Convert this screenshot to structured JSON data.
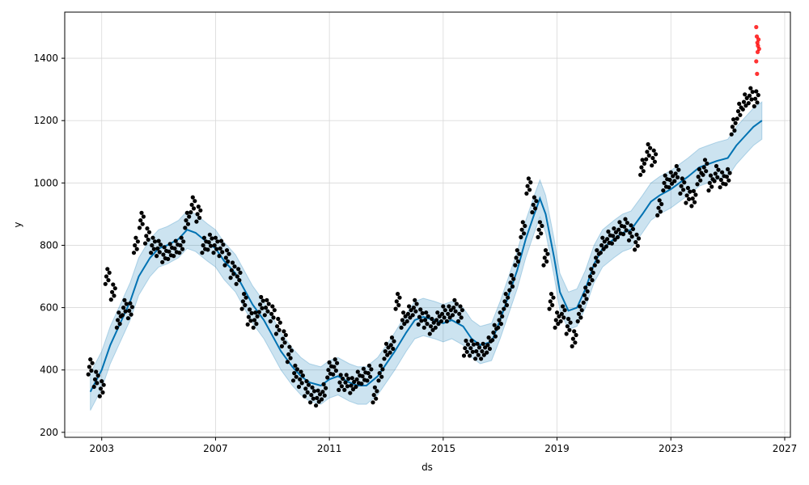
{
  "chart_data": {
    "type": "scatter",
    "title": "",
    "xlabel": "ds",
    "ylabel": "y",
    "xlim": [
      2001.7,
      2027.2
    ],
    "ylim": [
      184,
      1548
    ],
    "grid": true,
    "legend": "none",
    "x_ticks": [
      2003,
      2007,
      2011,
      2015,
      2019,
      2023,
      2027
    ],
    "y_ticks": [
      200,
      400,
      600,
      800,
      1000,
      1200,
      1400
    ],
    "colors": {
      "observed": "#000000",
      "forecast_line": "#0072B2",
      "uncertainty_band": "#0072B2",
      "outliers": "#FF0000",
      "grid": "#d9d9d9"
    },
    "series": [
      {
        "kind": "forecast",
        "x": [
          2002.6,
          2003.0,
          2003.3,
          2003.7,
          2004.0,
          2004.3,
          2004.7,
          2005.0,
          2005.3,
          2005.7,
          2006.0,
          2006.3,
          2006.7,
          2007.0,
          2007.3,
          2007.7,
          2008.0,
          2008.3,
          2008.7,
          2009.0,
          2009.3,
          2009.7,
          2010.0,
          2010.3,
          2010.7,
          2011.0,
          2011.3,
          2011.7,
          2012.0,
          2012.3,
          2012.7,
          2013.0,
          2013.3,
          2013.7,
          2014.0,
          2014.3,
          2014.7,
          2015.0,
          2015.3,
          2015.7,
          2016.0,
          2016.3,
          2016.7,
          2017.0,
          2017.3,
          2017.6,
          2017.9,
          2018.2,
          2018.4,
          2018.6,
          2018.9,
          2019.1,
          2019.4,
          2019.7,
          2020.0,
          2020.3,
          2020.6,
          2021.0,
          2021.3,
          2021.6,
          2022.0,
          2022.3,
          2022.6,
          2023.0,
          2023.3,
          2023.6,
          2024.0,
          2024.3,
          2024.6,
          2025.0,
          2025.3,
          2025.6,
          2025.9,
          2026.2
        ],
        "y": [
          330,
          400,
          480,
          560,
          620,
          700,
          760,
          790,
          800,
          820,
          850,
          840,
          810,
          790,
          750,
          710,
          660,
          610,
          560,
          510,
          460,
          410,
          380,
          360,
          350,
          370,
          380,
          360,
          350,
          350,
          380,
          420,
          460,
          520,
          560,
          570,
          560,
          550,
          560,
          540,
          500,
          480,
          490,
          560,
          640,
          720,
          820,
          900,
          950,
          900,
          760,
          650,
          590,
          600,
          660,
          740,
          790,
          820,
          840,
          850,
          900,
          940,
          960,
          980,
          1000,
          1020,
          1050,
          1060,
          1070,
          1080,
          1120,
          1150,
          1180,
          1200
        ]
      },
      {
        "kind": "observed",
        "x": [
          2002.6,
          2002.8,
          2003.0,
          2003.2,
          2003.4,
          2003.6,
          2003.8,
          2004.0,
          2004.2,
          2004.4,
          2004.6,
          2004.8,
          2005.0,
          2005.2,
          2005.4,
          2005.6,
          2005.8,
          2006.0,
          2006.2,
          2006.4,
          2006.6,
          2006.8,
          2007.0,
          2007.2,
          2007.4,
          2007.6,
          2007.8,
          2008.0,
          2008.2,
          2008.4,
          2008.6,
          2008.8,
          2009.0,
          2009.2,
          2009.4,
          2009.6,
          2009.8,
          2010.0,
          2010.2,
          2010.4,
          2010.6,
          2010.8,
          2011.0,
          2011.2,
          2011.4,
          2011.6,
          2011.8,
          2012.0,
          2012.2,
          2012.4,
          2012.6,
          2012.8,
          2013.0,
          2013.2,
          2013.4,
          2013.6,
          2013.8,
          2014.0,
          2014.2,
          2014.4,
          2014.6,
          2014.8,
          2015.0,
          2015.2,
          2015.4,
          2015.6,
          2015.8,
          2016.0,
          2016.2,
          2016.4,
          2016.6,
          2016.8,
          2017.0,
          2017.2,
          2017.4,
          2017.6,
          2017.8,
          2018.0,
          2018.2,
          2018.4,
          2018.6,
          2018.8,
          2019.0,
          2019.2,
          2019.4,
          2019.6,
          2019.8,
          2020.0,
          2020.2,
          2020.4,
          2020.6,
          2020.8,
          2021.0,
          2021.2,
          2021.4,
          2021.6,
          2021.8,
          2022.0,
          2022.2,
          2022.4,
          2022.6,
          2022.8,
          2023.0,
          2023.2,
          2023.4,
          2023.6,
          2023.8,
          2024.0,
          2024.2,
          2024.4,
          2024.6,
          2024.8,
          2025.0,
          2025.2,
          2025.4,
          2025.6,
          2025.8,
          2026.0
        ],
        "y": [
          410,
          370,
          340,
          700,
          650,
          560,
          600,
          590,
          800,
          880,
          830,
          800,
          790,
          770,
          780,
          790,
          800,
          880,
          930,
          900,
          800,
          810,
          800,
          790,
          760,
          720,
          700,
          620,
          570,
          560,
          610,
          600,
          580,
          540,
          500,
          450,
          390,
          370,
          340,
          320,
          310,
          330,
          400,
          410,
          360,
          360,
          350,
          370,
          380,
          390,
          320,
          390,
          460,
          480,
          620,
          560,
          580,
          600,
          570,
          560,
          540,
          560,
          580,
          580,
          600,
          580,
          470,
          470,
          460,
          460,
          480,
          520,
          560,
          620,
          680,
          760,
          850,
          990,
          930,
          850,
          760,
          620,
          560,
          580,
          540,
          500,
          580,
          640,
          700,
          760,
          800,
          820,
          830,
          850,
          860,
          840,
          810,
          1050,
          1100,
          1080,
          920,
          1000,
          1010,
          1030,
          990,
          960,
          950,
          1020,
          1050,
          1000,
          1030,
          1010,
          1020,
          1180,
          1230,
          1260,
          1280,
          1270
        ]
      },
      {
        "kind": "outliers",
        "x": [
          2026.0,
          2026.02,
          2026.04,
          2026.06,
          2026.08,
          2026.1,
          2026.0,
          2026.05,
          2026.03
        ],
        "y": [
          1500,
          1470,
          1450,
          1440,
          1460,
          1430,
          1390,
          1420,
          1350
        ]
      }
    ]
  }
}
